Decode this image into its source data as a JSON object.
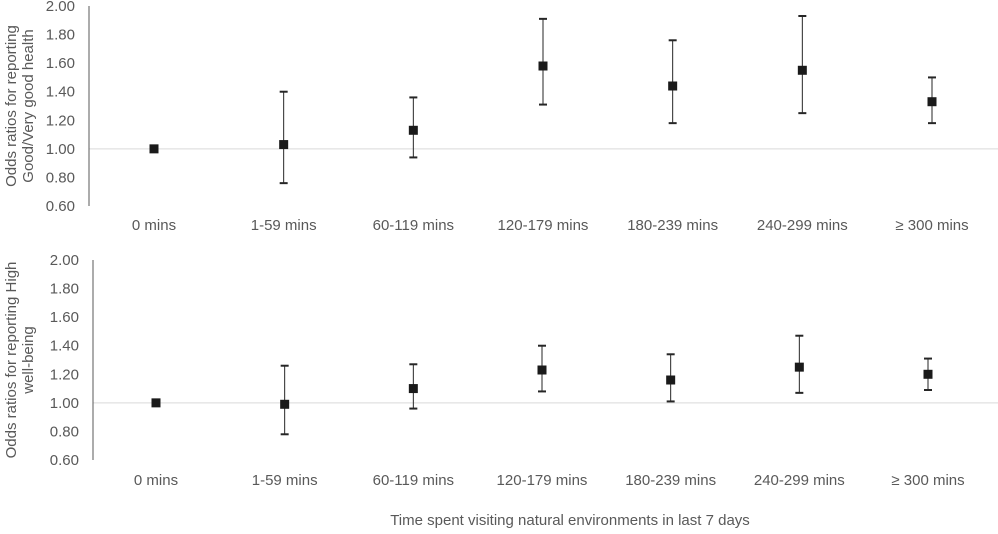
{
  "chart_data": [
    {
      "type": "scatter",
      "categories": [
        "0 mins",
        "1-59 mins",
        "60-119 mins",
        "120-179 mins",
        "180-239 mins",
        "240-299 mins",
        "≥ 300 mins"
      ],
      "values": [
        1.0,
        1.03,
        1.13,
        1.58,
        1.44,
        1.55,
        1.33
      ],
      "ci_lower": [
        null,
        0.76,
        0.94,
        1.31,
        1.18,
        1.25,
        1.18
      ],
      "ci_upper": [
        null,
        1.4,
        1.36,
        1.91,
        1.76,
        1.93,
        1.5
      ],
      "ylabel": "Odds ratios for reporting Good/Very good health",
      "xlabel": "",
      "ylim": [
        0.6,
        2.0
      ],
      "yticks": [
        "0.60",
        "0.80",
        "1.00",
        "1.20",
        "1.40",
        "1.60",
        "1.80",
        "2.00"
      ],
      "reference_line": 1.0,
      "grid": false,
      "marker_color": "#1a1a1a"
    },
    {
      "type": "scatter",
      "categories": [
        "0 mins",
        "1-59 mins",
        "60-119 mins",
        "120-179 mins",
        "180-239 mins",
        "240-299 mins",
        "≥ 300 mins"
      ],
      "values": [
        1.0,
        0.99,
        1.1,
        1.23,
        1.16,
        1.25,
        1.2
      ],
      "ci_lower": [
        null,
        0.78,
        0.96,
        1.08,
        1.01,
        1.07,
        1.09
      ],
      "ci_upper": [
        null,
        1.26,
        1.27,
        1.4,
        1.34,
        1.47,
        1.31
      ],
      "ylabel": "Odds ratios for reporting High well-being",
      "xlabel": "Time spent visiting natural environments in last 7 days",
      "ylim": [
        0.6,
        2.0
      ],
      "yticks": [
        "0.60",
        "0.80",
        "1.00",
        "1.20",
        "1.40",
        "1.60",
        "1.80",
        "2.00"
      ],
      "reference_line": 1.0,
      "grid": false,
      "marker_color": "#1a1a1a"
    }
  ]
}
